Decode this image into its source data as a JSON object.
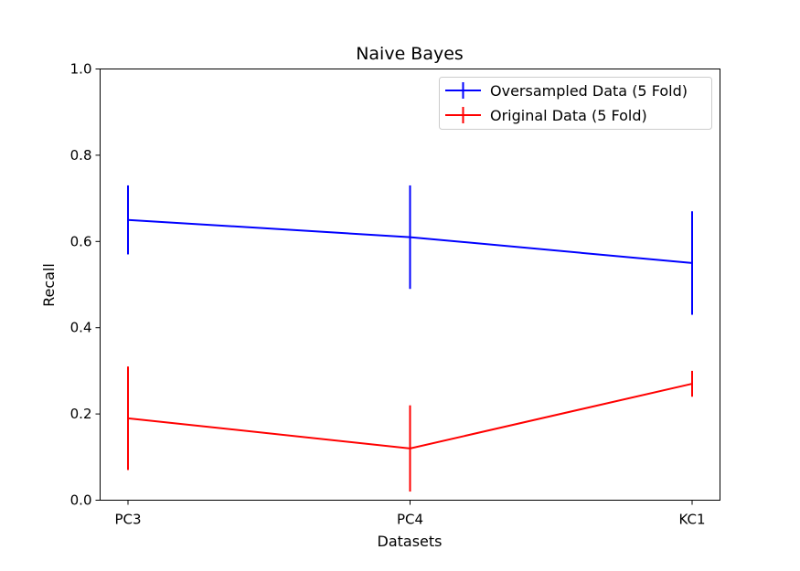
{
  "chart_data": {
    "type": "line",
    "title": "Naive Bayes",
    "xlabel": "Datasets",
    "ylabel": "Recall",
    "categories": [
      "PC3",
      "PC4",
      "KC1"
    ],
    "ylim": [
      0.0,
      1.0
    ],
    "yticks": [
      "0.0",
      "0.2",
      "0.4",
      "0.6",
      "0.8",
      "1.0"
    ],
    "grid": false,
    "legend_position": "top-right",
    "error_bars": true,
    "series": [
      {
        "name": "Oversampled Data (5 Fold)",
        "color": "#0000ff",
        "values": [
          0.65,
          0.61,
          0.55
        ],
        "errors": [
          0.08,
          0.12,
          0.12
        ]
      },
      {
        "name": "Original Data (5 Fold)",
        "color": "#ff0000",
        "values": [
          0.19,
          0.12,
          0.27
        ],
        "errors": [
          0.12,
          0.1,
          0.03
        ]
      }
    ]
  }
}
